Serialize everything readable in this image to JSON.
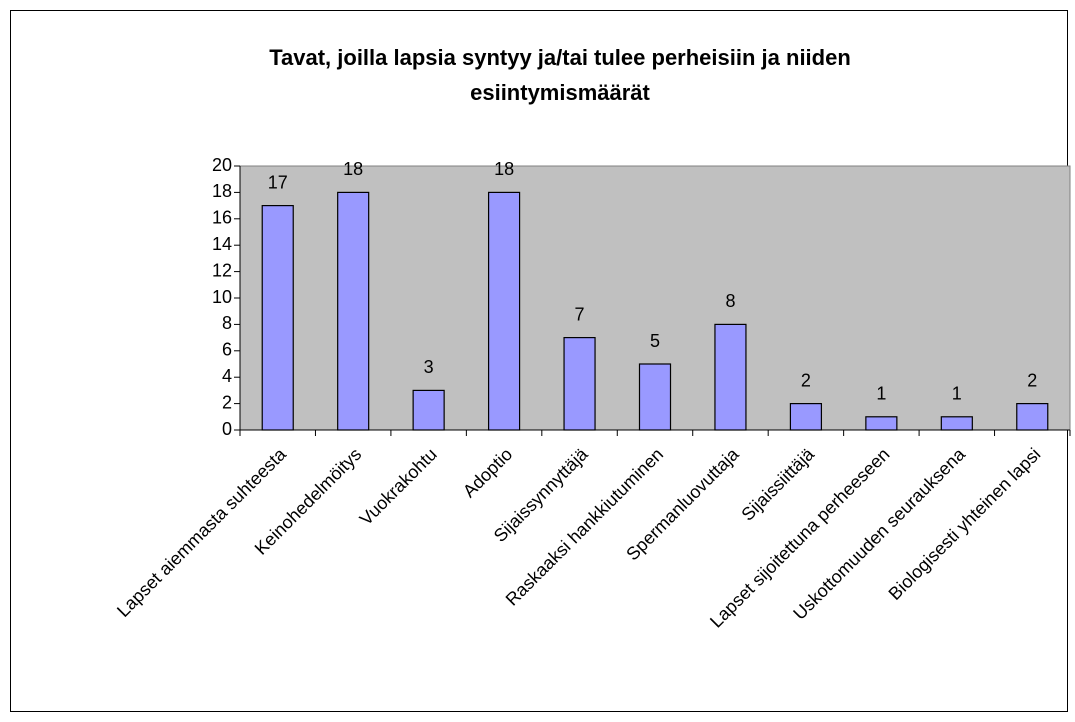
{
  "chart_data": {
    "type": "bar",
    "title": "Tavat, joilla lapsia syntyy ja/tai tulee perheisiin ja niiden esiintymismäärät",
    "categories": [
      "Lapset aiemmasta suhteesta",
      "Keinohedelmöitys",
      "Vuokrakohtu",
      "Adoptio",
      "Sijaissynnyttäjä",
      "Raskaaksi hankkiutuminen",
      "Spermanluovuttaja",
      "Sijaissiittäjä",
      "Lapset sijoitettuna perheeseen",
      "Uskottomuuden seurauksena",
      "Biologisesti yhteinen lapsi"
    ],
    "values": [
      17,
      18,
      3,
      18,
      7,
      5,
      8,
      2,
      1,
      1,
      2
    ],
    "color": "#9999ff",
    "ylim": [
      0,
      20
    ],
    "yticks": [
      0,
      2,
      4,
      6,
      8,
      10,
      12,
      14,
      16,
      18,
      20
    ],
    "grid": false
  }
}
